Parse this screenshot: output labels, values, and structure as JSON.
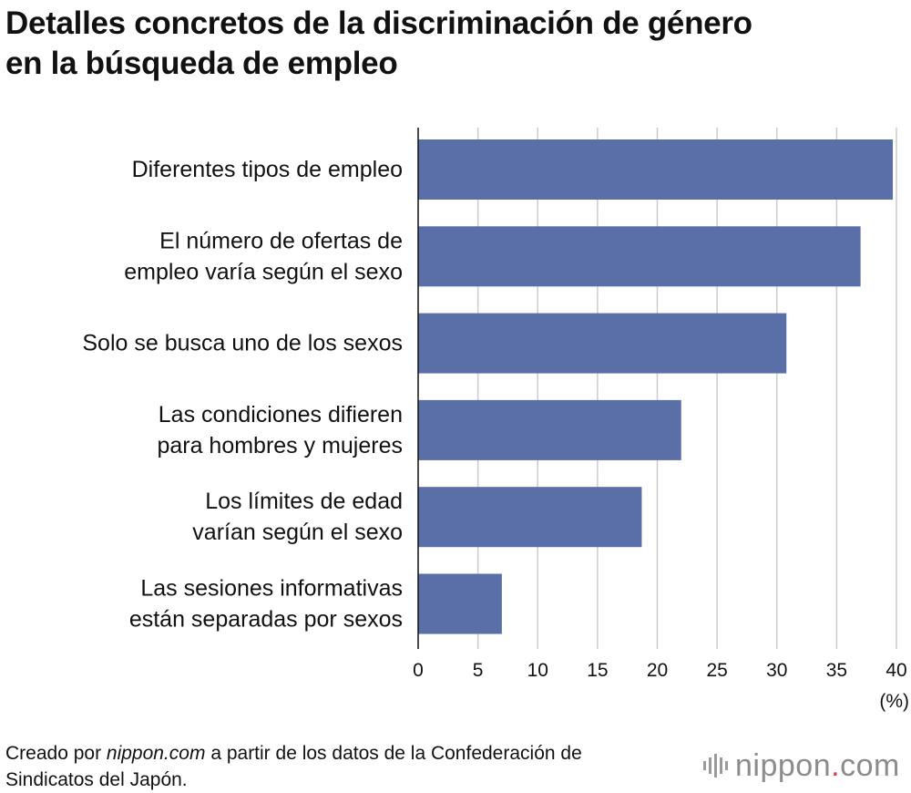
{
  "title": {
    "line1": "Detalles concretos de la discriminación de género",
    "line2": "en la búsqueda de empleo"
  },
  "chart_data": {
    "type": "bar",
    "orientation": "horizontal",
    "categories": [
      [
        "Diferentes tipos de empleo"
      ],
      [
        "El número de ofertas de",
        "empleo varía según el sexo"
      ],
      [
        "Solo se busca uno de los sexos"
      ],
      [
        "Las condiciones difieren",
        "para hombres y mujeres"
      ],
      [
        "Los límites de edad",
        "varían según el sexo"
      ],
      [
        "Las sesiones informativas",
        "están separadas por sexos"
      ]
    ],
    "values": [
      39.7,
      37.0,
      30.8,
      22.0,
      18.7,
      7.0
    ],
    "xlim": [
      0,
      40
    ],
    "xticks": [
      0,
      5,
      10,
      15,
      20,
      25,
      30,
      35,
      40
    ],
    "xlabel": "(%)",
    "bar_color": "#5a6ea8",
    "grid": true
  },
  "footer": {
    "prefix": "Creado por ",
    "source_name": "nippon.com",
    "suffix": " a partir de los datos de la Confederación de",
    "line2": "Sindicatos del Japón."
  },
  "brand": {
    "name": "nippon",
    "dot": ".",
    "tld": "com"
  }
}
